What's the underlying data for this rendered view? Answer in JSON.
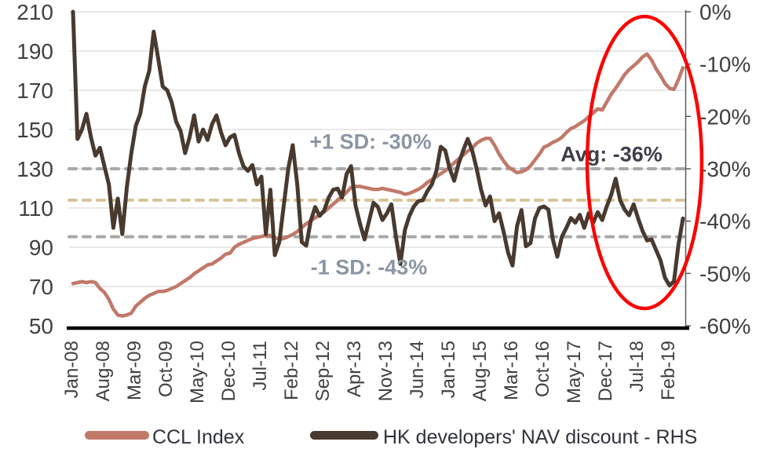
{
  "chart_data": {
    "type": "line",
    "title": "",
    "x_axis": {
      "labels": [
        "Jan-08",
        "Aug-08",
        "Mar-09",
        "Oct-09",
        "May-10",
        "Dec-10",
        "Jul-11",
        "Feb-12",
        "Sep-12",
        "Apr-13",
        "Nov-13",
        "Jun-14",
        "Jan-15",
        "Aug-15",
        "Mar-16",
        "Oct-16",
        "May-17",
        "Dec-17",
        "Jul-18",
        "Feb-19"
      ],
      "interval_months_between_labels": 7,
      "frequency": "monthly"
    },
    "left_axis": {
      "ticks": [
        210,
        190,
        170,
        150,
        130,
        110,
        90,
        70,
        50
      ],
      "min": 50,
      "max": 210
    },
    "right_axis": {
      "tick_labels": [
        "0%",
        "-10%",
        "-20%",
        "-30%",
        "-40%",
        "-50%",
        "-60%"
      ],
      "min": -60,
      "max": 0
    },
    "grid": true,
    "series": [
      {
        "name": "CCL Index",
        "axis": "left",
        "color": "#c1796a",
        "values": [
          71.5,
          72,
          72.5,
          72,
          72.5,
          72,
          69,
          67,
          63.5,
          58.5,
          55.5,
          55,
          55.5,
          56.5,
          60,
          62,
          64,
          65.5,
          66.5,
          67.5,
          67.5,
          68,
          69,
          70,
          71.5,
          73,
          74.5,
          76.5,
          78,
          79.5,
          81,
          81.5,
          83,
          84.5,
          86.5,
          87,
          90,
          91.5,
          92.5,
          93.5,
          94.5,
          95,
          95.5,
          96,
          96,
          95,
          94,
          94.5,
          95.5,
          96.5,
          98,
          100,
          102,
          103.5,
          105,
          106.5,
          108,
          110,
          112,
          114,
          116,
          118,
          120.5,
          121,
          121,
          120.5,
          120,
          119.5,
          119.5,
          120,
          119.5,
          119,
          118.5,
          118,
          117,
          117.5,
          118.5,
          119.5,
          121,
          123,
          124.5,
          126,
          127.5,
          129,
          131,
          133,
          135,
          137,
          139,
          140.5,
          143,
          144.5,
          145.5,
          145.5,
          142,
          137.5,
          134,
          131,
          129.5,
          128,
          128.5,
          129.5,
          131.5,
          134.5,
          137.5,
          141,
          142,
          143.5,
          144.5,
          146,
          148.5,
          150.5,
          151.5,
          153,
          154.5,
          156.5,
          158.5,
          160.5,
          160,
          164,
          168,
          171,
          174.5,
          178,
          180.5,
          182.5,
          184.5,
          187,
          188.5,
          185.5,
          181,
          177.5,
          173.5,
          171,
          170.5,
          175.5,
          181.5
        ]
      },
      {
        "name": "HK developers' NAV discount - RHS",
        "axis": "right",
        "color": "#483a2f",
        "values": [
          0,
          -24.3,
          -22.5,
          -19.5,
          -24,
          -27.5,
          -26,
          -29.5,
          -33,
          -41.3,
          -35.7,
          -42.5,
          -33.5,
          -27,
          -21.8,
          -19.5,
          -14.3,
          -11.3,
          -3.8,
          -9,
          -14.3,
          -15,
          -17.3,
          -21,
          -22.8,
          -27,
          -24,
          -19.8,
          -24.8,
          -22.5,
          -24.5,
          -21.5,
          -19.8,
          -23,
          -25.5,
          -24,
          -23.5,
          -27,
          -29.5,
          -30.4,
          -29.3,
          -33,
          -31.5,
          -42.5,
          -34,
          -46.5,
          -44,
          -37,
          -30,
          -25.5,
          -33,
          -44,
          -44.7,
          -40,
          -37.3,
          -39,
          -38,
          -35.5,
          -34,
          -33.8,
          -35.5,
          -31,
          -29.5,
          -37,
          -40.5,
          -43.5,
          -40,
          -36.5,
          -37.3,
          -39.8,
          -38.5,
          -36.8,
          -43,
          -48.2,
          -41.7,
          -39,
          -37.2,
          -36.2,
          -36,
          -34.3,
          -33,
          -30.5,
          -25.8,
          -26.5,
          -30,
          -32.3,
          -29,
          -26.5,
          -24.3,
          -26.5,
          -30,
          -34,
          -37,
          -35.3,
          -40,
          -38.5,
          -42,
          -46,
          -48.5,
          -41,
          -37.9,
          -44.8,
          -44.2,
          -39.5,
          -37.5,
          -37.2,
          -37.8,
          -43.5,
          -46.8,
          -43,
          -41.3,
          -39.4,
          -40.3,
          -38.8,
          -41.3,
          -38.5,
          -40.3,
          -38.3,
          -39.8,
          -37.2,
          -35,
          -31.9,
          -36,
          -37.8,
          -38.9,
          -36.8,
          -39.5,
          -41.9,
          -43.7,
          -43.5,
          -45.5,
          -47.5,
          -50.8,
          -52.3,
          -51.5,
          -44.5,
          -39.5
        ]
      }
    ],
    "reference_lines": [
      {
        "label": "+1 SD: -30%",
        "value": -30,
        "line_color": "#a8a8a8",
        "label_color": "#8b95a3"
      },
      {
        "label": "Avg: -36%",
        "value": -36,
        "line_color": "#d7c498",
        "label_color": "#3e3d49"
      },
      {
        "label": "-1 SD: -43%",
        "value": -43,
        "line_color": "#a8a8a8",
        "label_color": "#8b95a3"
      }
    ],
    "annotation": {
      "shape": "ellipse",
      "color": "#ff0000",
      "highlight_range": "Dec-17 to Feb-19"
    },
    "legend_position": "bottom"
  }
}
